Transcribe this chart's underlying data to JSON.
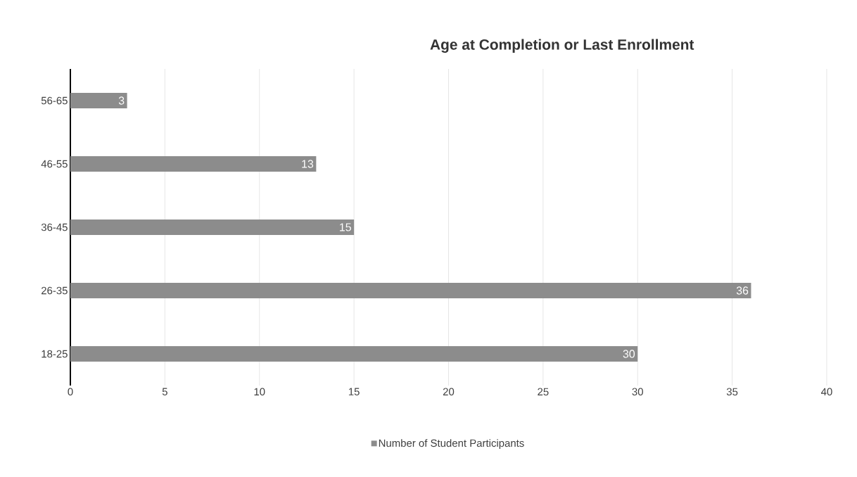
{
  "chart_data": {
    "type": "bar",
    "orientation": "horizontal",
    "title": "Age at Completion or Last Enrollment",
    "categories": [
      "56-65",
      "46-55",
      "36-45",
      "26-35",
      "18-25"
    ],
    "series": [
      {
        "name": "Number of Student Participants",
        "color": "#8c8c8c",
        "values": [
          3,
          13,
          15,
          36,
          30
        ]
      }
    ],
    "xlim": [
      0,
      40
    ],
    "xticks": [
      0,
      5,
      10,
      15,
      20,
      25,
      30,
      35,
      40
    ],
    "grid": "x",
    "legend": "bottom",
    "data_labels": true
  }
}
